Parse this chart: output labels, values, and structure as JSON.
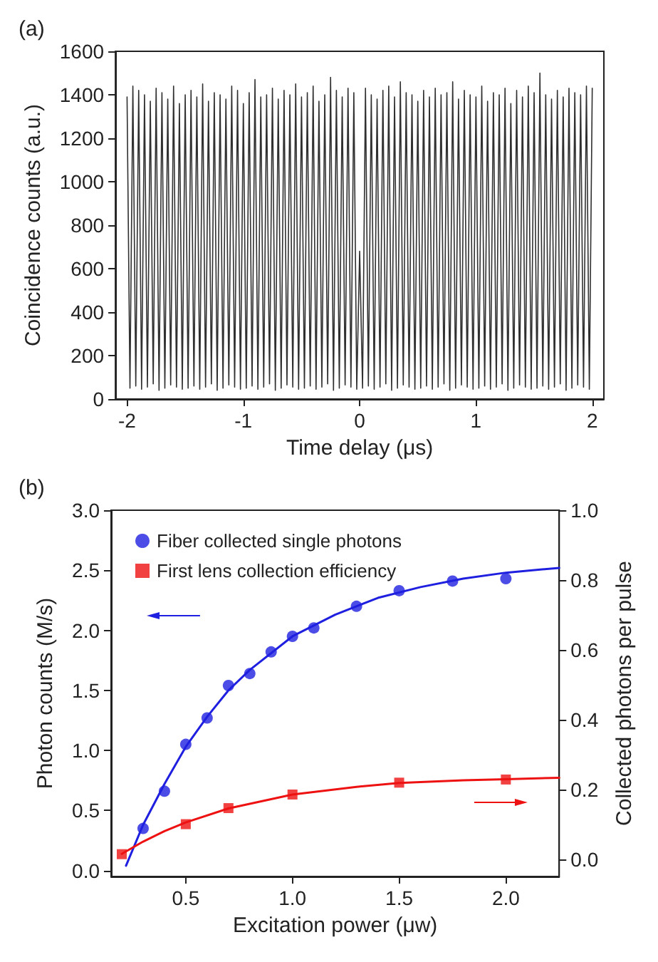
{
  "chart_data": [
    {
      "type": "line",
      "title": "(a)",
      "xlabel": "Time delay (μs)",
      "ylabel": "Coincidence counts (a.u.)",
      "xlim": [
        -2.1,
        2.1
      ],
      "xticks": [
        -2,
        -1,
        0,
        1,
        2
      ],
      "ylim": [
        0,
        1600
      ],
      "yticks": [
        0,
        200,
        400,
        600,
        800,
        1000,
        1200,
        1400,
        1600
      ],
      "grid": false,
      "legend": false,
      "marker": "none",
      "line_style": "solid",
      "series": [
        {
          "color": "#303030",
          "x": [
            -2,
            -1.975,
            -1.95,
            -1.925,
            -1.9,
            -1.875,
            -1.85,
            -1.825,
            -1.8,
            -1.775,
            -1.75,
            -1.725,
            -1.7,
            -1.675,
            -1.65,
            -1.625,
            -1.6,
            -1.575,
            -1.55,
            -1.525,
            -1.5,
            -1.475,
            -1.45,
            -1.425,
            -1.4,
            -1.375,
            -1.35,
            -1.325,
            -1.3,
            -1.275,
            -1.25,
            -1.225,
            -1.2,
            -1.175,
            -1.15,
            -1.125,
            -1.1,
            -1.075,
            -1.05,
            -1.025,
            -1,
            -0.975,
            -0.95,
            -0.925,
            -0.9,
            -0.875,
            -0.85,
            -0.825,
            -0.8,
            -0.775,
            -0.75,
            -0.725,
            -0.7,
            -0.675,
            -0.65,
            -0.625,
            -0.6,
            -0.575,
            -0.55,
            -0.525,
            -0.5,
            -0.475,
            -0.45,
            -0.425,
            -0.4,
            -0.375,
            -0.35,
            -0.325,
            -0.3,
            -0.275,
            -0.25,
            -0.225,
            -0.2,
            -0.175,
            -0.15,
            -0.125,
            -0.1,
            -0.075,
            -0.05,
            -0.025,
            0,
            0.025,
            0.05,
            0.075,
            0.1,
            0.125,
            0.15,
            0.175,
            0.2,
            0.225,
            0.25,
            0.275,
            0.3,
            0.325,
            0.35,
            0.375,
            0.4,
            0.425,
            0.45,
            0.475,
            0.5,
            0.525,
            0.55,
            0.575,
            0.6,
            0.625,
            0.65,
            0.675,
            0.7,
            0.725,
            0.75,
            0.775,
            0.8,
            0.825,
            0.85,
            0.875,
            0.9,
            0.925,
            0.95,
            0.975,
            1,
            1.025,
            1.05,
            1.075,
            1.1,
            1.125,
            1.15,
            1.175,
            1.2,
            1.225,
            1.25,
            1.275,
            1.3,
            1.325,
            1.35,
            1.375,
            1.4,
            1.425,
            1.45,
            1.475,
            1.5,
            1.525,
            1.55,
            1.575,
            1.6,
            1.625,
            1.65,
            1.675,
            1.7,
            1.725,
            1.75,
            1.775,
            1.8,
            1.825,
            1.85,
            1.875,
            1.9,
            1.925,
            1.95,
            1.975,
            2
          ],
          "values": [
            1390,
            50,
            1440,
            60,
            1420,
            45,
            1400,
            55,
            1370,
            70,
            1430,
            40,
            1410,
            50,
            1380,
            65,
            1440,
            55,
            1360,
            45,
            1400,
            50,
            1420,
            60,
            1390,
            45,
            1450,
            55,
            1370,
            70,
            1410,
            40,
            1400,
            50,
            1380,
            65,
            1440,
            55,
            1420,
            45,
            1360,
            50,
            1410,
            60,
            1470,
            45,
            1390,
            55,
            1400,
            70,
            1430,
            40,
            1380,
            50,
            1420,
            65,
            1400,
            55,
            1450,
            45,
            1390,
            50,
            1410,
            60,
            1440,
            45,
            1370,
            55,
            1400,
            70,
            1480,
            40,
            1420,
            50,
            1390,
            65,
            1430,
            55,
            1410,
            45,
            680,
            50,
            1430,
            60,
            1400,
            45,
            1380,
            55,
            1420,
            70,
            1440,
            40,
            1390,
            50,
            1460,
            65,
            1410,
            55,
            1400,
            45,
            1370,
            50,
            1420,
            60,
            1390,
            45,
            1430,
            55,
            1400,
            70,
            1410,
            40,
            1460,
            50,
            1380,
            65,
            1420,
            55,
            1400,
            45,
            1390,
            50,
            1440,
            60,
            1370,
            45,
            1410,
            55,
            1400,
            70,
            1430,
            40,
            1360,
            50,
            1420,
            65,
            1390,
            55,
            1440,
            45,
            1410,
            50,
            1500,
            60,
            1400,
            45,
            1380,
            55,
            1420,
            70,
            1390,
            40,
            1430,
            50,
            1410,
            65,
            1400,
            55,
            1440,
            45,
            1430
          ]
        }
      ]
    },
    {
      "type": "scatter",
      "title": "(b)",
      "xlabel": "Excitation power (μw)",
      "ylabel": "Photon counts (M/s)",
      "y2label": "Collected photons per pulse",
      "xlim": [
        0.15,
        2.25
      ],
      "xticks": [
        {
          "value": 0.5,
          "label": "0.5"
        },
        {
          "value": 1,
          "label": "1.0"
        },
        {
          "value": 1.5,
          "label": "1.5"
        },
        {
          "value": 2,
          "label": "2.0"
        }
      ],
      "ylim": [
        -0.05,
        3
      ],
      "yticks": [
        {
          "value": 0,
          "label": "0.0"
        },
        {
          "value": 0.5,
          "label": "0.5"
        },
        {
          "value": 1,
          "label": "1.0"
        },
        {
          "value": 1.5,
          "label": "1.5"
        },
        {
          "value": 2,
          "label": "2.0"
        },
        {
          "value": 2.5,
          "label": "2.5"
        },
        {
          "value": 3,
          "label": "3.0"
        }
      ],
      "y2lim": [
        -0.05,
        1
      ],
      "y2ticks": [
        {
          "value": 0,
          "label": "0.0"
        },
        {
          "value": 0.2,
          "label": "0.2"
        },
        {
          "value": 0.4,
          "label": "0.4"
        },
        {
          "value": 0.6,
          "label": "0.6"
        },
        {
          "value": 0.8,
          "label": "0.8"
        },
        {
          "value": 1,
          "label": "1.0"
        }
      ],
      "grid": false,
      "legend": "top left",
      "series": [
        {
          "type": "scatter",
          "name": "Fiber collected single photons",
          "color": "#1f1fe0",
          "marker": "circle",
          "x": [
            0.3,
            0.4,
            0.5,
            0.6,
            0.7,
            0.8,
            0.9,
            1,
            1.1,
            1.3,
            1.5,
            1.75,
            2
          ],
          "values": [
            0.35,
            0.66,
            1.05,
            1.27,
            1.54,
            1.64,
            1.82,
            1.95,
            2.02,
            2.2,
            2.33,
            2.41,
            2.43
          ]
        },
        {
          "type": "scatter",
          "name": "First lens collection efficiency",
          "color": "#ee1111",
          "marker": "square",
          "axis": "y2",
          "x": [
            0.2,
            0.5,
            0.7,
            1,
            1.5,
            2
          ],
          "values": [
            0.014,
            0.1,
            0.146,
            0.185,
            0.219,
            0.228
          ]
        },
        {
          "type": "line",
          "color": "#1f1fe0",
          "marker": "none",
          "line_style": "solid",
          "x": [
            0.22,
            0.3,
            0.4,
            0.5,
            0.6,
            0.7,
            0.8,
            1,
            1.2,
            1.4,
            1.6,
            1.8,
            2,
            2.25
          ],
          "values": [
            0.04,
            0.38,
            0.72,
            1.03,
            1.28,
            1.5,
            1.67,
            1.95,
            2.13,
            2.27,
            2.36,
            2.43,
            2.48,
            2.52
          ]
        },
        {
          "type": "line",
          "color": "#ee1111",
          "marker": "none",
          "line_style": "solid",
          "axis": "y2",
          "x": [
            0.2,
            0.3,
            0.4,
            0.5,
            0.7,
            1,
            1.3,
            1.5,
            1.8,
            2,
            2.25
          ],
          "values": [
            0.015,
            0.05,
            0.08,
            0.105,
            0.145,
            0.185,
            0.207,
            0.218,
            0.226,
            0.229,
            0.233
          ]
        }
      ]
    }
  ]
}
